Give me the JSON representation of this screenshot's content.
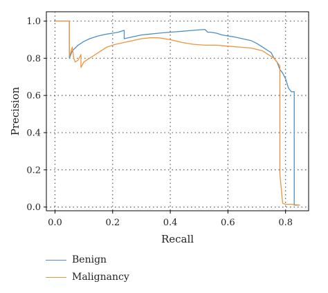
{
  "chart_data": {
    "type": "line",
    "title": "",
    "xlabel": "Recall",
    "ylabel": "Precision",
    "xlim": [
      -0.03,
      0.88
    ],
    "ylim": [
      -0.02,
      1.05
    ],
    "xticks": [
      0.0,
      0.2,
      0.4,
      0.6,
      0.8
    ],
    "yticks": [
      0.0,
      0.2,
      0.4,
      0.6,
      0.8,
      1.0
    ],
    "xtick_labels": [
      "0.0",
      "0.2",
      "0.4",
      "0.6",
      "0.8"
    ],
    "ytick_labels": [
      "0.0",
      "0.2",
      "0.4",
      "0.6",
      "0.8",
      "1.0"
    ],
    "grid": true,
    "legend_position": "below",
    "series": [
      {
        "name": "Benign",
        "color": "#4c8dc4",
        "x": [
          0.0,
          0.05,
          0.05,
          0.06,
          0.08,
          0.1,
          0.12,
          0.15,
          0.18,
          0.2,
          0.22,
          0.24,
          0.24,
          0.27,
          0.3,
          0.33,
          0.36,
          0.4,
          0.44,
          0.48,
          0.52,
          0.53,
          0.54,
          0.56,
          0.58,
          0.6,
          0.62,
          0.65,
          0.68,
          0.7,
          0.71,
          0.72,
          0.73,
          0.74,
          0.75,
          0.76,
          0.77,
          0.78,
          0.79,
          0.8,
          0.81,
          0.82,
          0.83,
          0.83,
          0.84,
          0.85
        ],
        "y": [
          1.0,
          1.0,
          0.8,
          0.84,
          0.87,
          0.89,
          0.905,
          0.92,
          0.93,
          0.935,
          0.94,
          0.95,
          0.905,
          0.915,
          0.925,
          0.93,
          0.935,
          0.94,
          0.945,
          0.95,
          0.955,
          0.94,
          0.94,
          0.935,
          0.925,
          0.92,
          0.915,
          0.905,
          0.895,
          0.88,
          0.87,
          0.86,
          0.85,
          0.84,
          0.83,
          0.8,
          0.78,
          0.74,
          0.72,
          0.69,
          0.64,
          0.62,
          0.62,
          0.01,
          0.01,
          0.01
        ]
      },
      {
        "name": "Malignancy",
        "color": "#f0933a",
        "x": [
          0.0,
          0.05,
          0.05,
          0.06,
          0.065,
          0.07,
          0.08,
          0.09,
          0.09,
          0.1,
          0.12,
          0.15,
          0.18,
          0.21,
          0.24,
          0.27,
          0.3,
          0.33,
          0.36,
          0.4,
          0.44,
          0.48,
          0.52,
          0.56,
          0.6,
          0.64,
          0.68,
          0.72,
          0.74,
          0.76,
          0.77,
          0.78,
          0.78,
          0.79,
          0.8,
          0.82,
          0.85
        ],
        "y": [
          1.0,
          1.0,
          0.81,
          0.86,
          0.8,
          0.78,
          0.79,
          0.82,
          0.75,
          0.78,
          0.8,
          0.83,
          0.86,
          0.875,
          0.885,
          0.895,
          0.905,
          0.91,
          0.91,
          0.9,
          0.885,
          0.875,
          0.87,
          0.87,
          0.865,
          0.86,
          0.855,
          0.84,
          0.82,
          0.8,
          0.78,
          0.76,
          0.18,
          0.02,
          0.015,
          0.015,
          0.01
        ]
      }
    ]
  }
}
